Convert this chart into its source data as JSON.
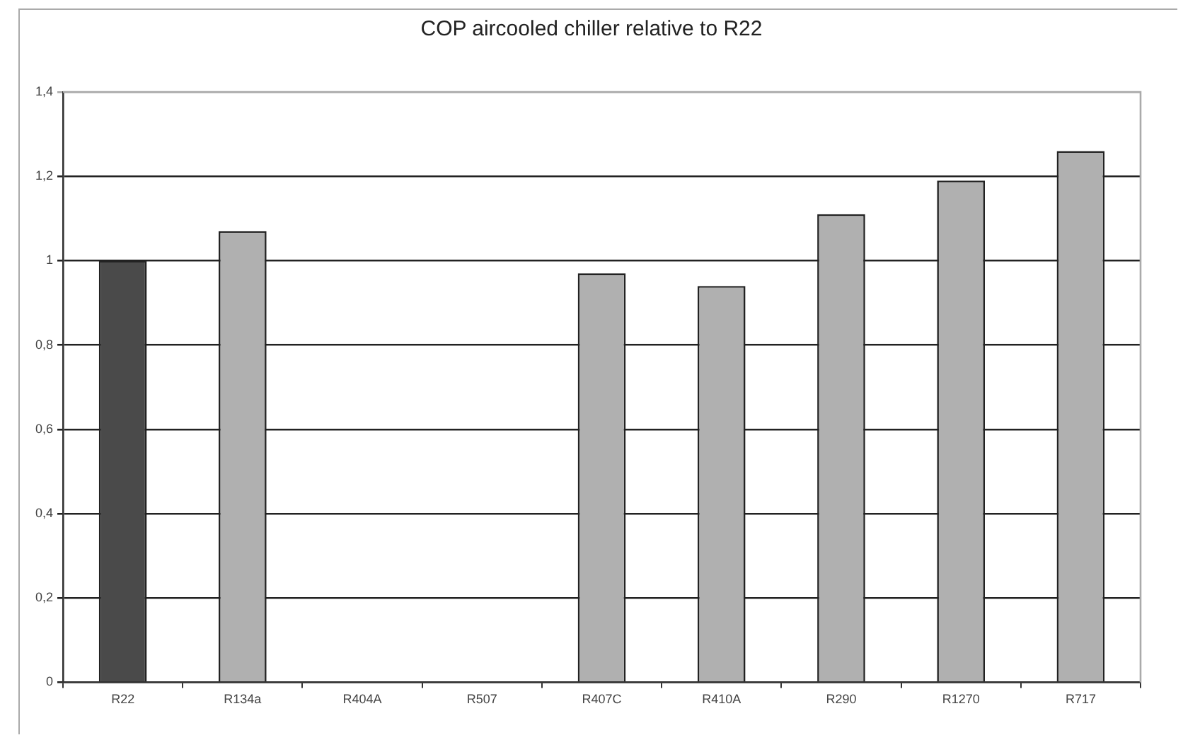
{
  "chart_data": {
    "type": "bar",
    "title": "COP aircooled chiller relative to R22",
    "categories": [
      "R22",
      "R134a",
      "R404A",
      "R507",
      "R407C",
      "R410A",
      "R290",
      "R1270",
      "R717"
    ],
    "values": [
      1.0,
      1.07,
      null,
      null,
      0.97,
      0.94,
      1.11,
      1.19,
      1.26
    ],
    "colors": [
      "#4a4a4a",
      "#b0b0b0",
      "#b0b0b0",
      "#b0b0b0",
      "#b0b0b0",
      "#b0b0b0",
      "#b0b0b0",
      "#b0b0b0",
      "#b0b0b0"
    ],
    "ylim": [
      0,
      1.4
    ],
    "yticks": [
      {
        "value": 0,
        "label": "0"
      },
      {
        "value": 0.2,
        "label": "0,2"
      },
      {
        "value": 0.4,
        "label": "0,4"
      },
      {
        "value": 0.6,
        "label": "0,6"
      },
      {
        "value": 0.8,
        "label": "0,8"
      },
      {
        "value": 1,
        "label": "1"
      },
      {
        "value": 1.2,
        "label": "1,2"
      },
      {
        "value": 1.4,
        "label": "1,4"
      }
    ],
    "grid": "y",
    "legend": false
  }
}
